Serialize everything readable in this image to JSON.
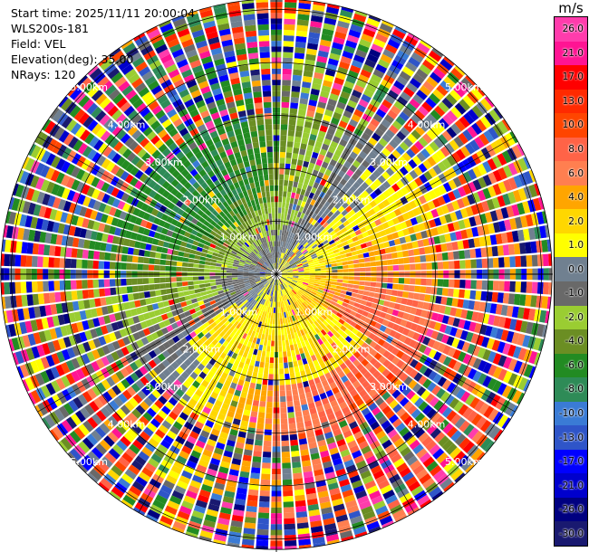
{
  "info": {
    "start_time": "Start time: 2025/11/11 20:00:04",
    "site": "WLS200s-181",
    "field": "Field: VEL",
    "elevation": "Elevation(deg): 35.00",
    "nrays": "NRays: 120"
  },
  "colorbar": {
    "unit": "m/s",
    "ticks": [
      "26.0",
      "21.0",
      "17.0",
      "13.0",
      "10.0",
      "8.0",
      "6.0",
      "4.0",
      "2.0",
      "1.0",
      "0.0",
      "-1.0",
      "-2.0",
      "-4.0",
      "-6.0",
      "-8.0",
      "-10.0",
      "-13.0",
      "-17.0",
      "-21.0",
      "-26.0",
      "-30.0"
    ],
    "colors": [
      "#ff3cac",
      "#ff1493",
      "#ff0000",
      "#ff2a00",
      "#ff4500",
      "#ff6347",
      "#ff7f50",
      "#ffa500",
      "#ffd700",
      "#ffff00",
      "#708090",
      "#696969",
      "#9acd32",
      "#6b8e23",
      "#228b22",
      "#2e8b57",
      "#3a7bd5",
      "#2f55c8",
      "#0000ff",
      "#0000cd",
      "#000080",
      "#191970"
    ]
  },
  "range_labels": [
    "1.00km",
    "2.00km",
    "3.00km",
    "4.00km",
    "5.00km"
  ],
  "chart_data": {
    "type": "heatmap",
    "title": "",
    "projection": "polar PPI",
    "field": "VEL",
    "units": "m/s",
    "nrays": 120,
    "range_rings_km": [
      1,
      2,
      3,
      4,
      5
    ],
    "max_range_km": 5.2,
    "value_range": [
      -30.0,
      26.0
    ],
    "pattern_summary": [
      {
        "sector": "north-west",
        "velocity": "negative (-6 to -17 m/s, blue/green)"
      },
      {
        "sector": "south-east",
        "velocity": "positive (6 to 21 m/s, orange/red)"
      },
      {
        "sector": "near-ring 1-2 km, south",
        "velocity": "low positive (2 to 4 m/s, yellow)"
      },
      {
        "sector": "beyond ~3 km",
        "velocity": "noisy, all values"
      }
    ]
  }
}
